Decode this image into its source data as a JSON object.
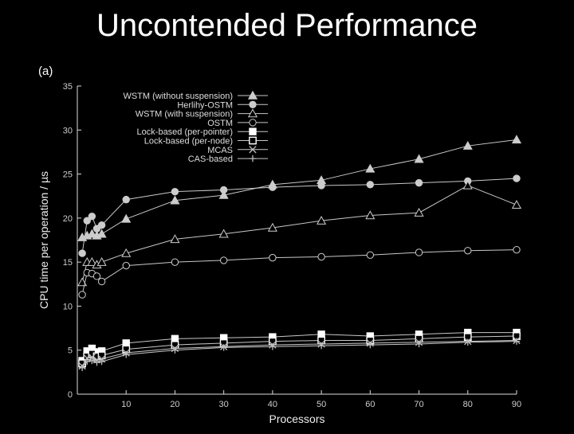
{
  "slide": {
    "title": "Uncontended Performance"
  },
  "chart_data": {
    "type": "line",
    "panel_label": "(a)",
    "title": "",
    "xlabel": "Processors",
    "ylabel": "CPU time per operation / µs",
    "xlim": [
      0,
      90
    ],
    "ylim": [
      0,
      35
    ],
    "xticks": [
      10,
      20,
      30,
      40,
      50,
      60,
      70,
      80,
      90
    ],
    "yticks": [
      0,
      5,
      10,
      15,
      20,
      25,
      30,
      35
    ],
    "legend_position": "top-left",
    "grid": false,
    "x": [
      1,
      2,
      3,
      4,
      5,
      10,
      20,
      30,
      40,
      50,
      60,
      70,
      80,
      90
    ],
    "series": [
      {
        "name": "WSTM (without suspension)",
        "marker": "triangle-filled",
        "values": [
          17.8,
          18.0,
          18.2,
          18.0,
          18.2,
          19.9,
          22.0,
          22.6,
          23.8,
          24.3,
          25.6,
          26.7,
          28.2,
          28.9
        ]
      },
      {
        "name": "Herlihy-OSTM",
        "marker": "circle-filled",
        "values": [
          16.0,
          19.7,
          20.2,
          18.8,
          19.2,
          22.1,
          23.0,
          23.2,
          23.5,
          23.7,
          23.8,
          24.0,
          24.2,
          24.5
        ]
      },
      {
        "name": "WSTM (with suspension)",
        "marker": "triangle-open",
        "values": [
          12.7,
          15.0,
          15.0,
          14.7,
          15.0,
          16.0,
          17.6,
          18.2,
          18.9,
          19.7,
          20.3,
          20.6,
          23.7,
          21.5
        ]
      },
      {
        "name": "OSTM",
        "marker": "circle-open",
        "values": [
          11.3,
          13.8,
          13.7,
          13.4,
          12.8,
          14.6,
          15.0,
          15.2,
          15.5,
          15.6,
          15.8,
          16.1,
          16.3,
          16.4
        ]
      },
      {
        "name": "Lock-based (per-pointer)",
        "marker": "square-filled",
        "values": [
          3.8,
          4.9,
          5.2,
          4.8,
          4.9,
          5.8,
          6.3,
          6.4,
          6.5,
          6.8,
          6.6,
          6.8,
          7.0,
          7.0
        ]
      },
      {
        "name": "Lock-based (per-node)",
        "marker": "square-open",
        "values": [
          3.5,
          4.3,
          4.6,
          4.3,
          4.4,
          5.1,
          5.6,
          5.8,
          6.0,
          6.1,
          6.1,
          6.3,
          6.5,
          6.6
        ]
      },
      {
        "name": "MCAS",
        "marker": "cross",
        "values": [
          3.2,
          4.1,
          4.2,
          3.9,
          4.0,
          4.7,
          5.2,
          5.4,
          5.6,
          5.7,
          5.8,
          5.9,
          6.0,
          6.1
        ]
      },
      {
        "name": "CAS-based",
        "marker": "plus",
        "values": [
          3.0,
          3.7,
          3.8,
          3.6,
          3.7,
          4.5,
          5.0,
          5.3,
          5.4,
          5.5,
          5.6,
          5.7,
          5.9,
          6.0
        ]
      }
    ]
  }
}
